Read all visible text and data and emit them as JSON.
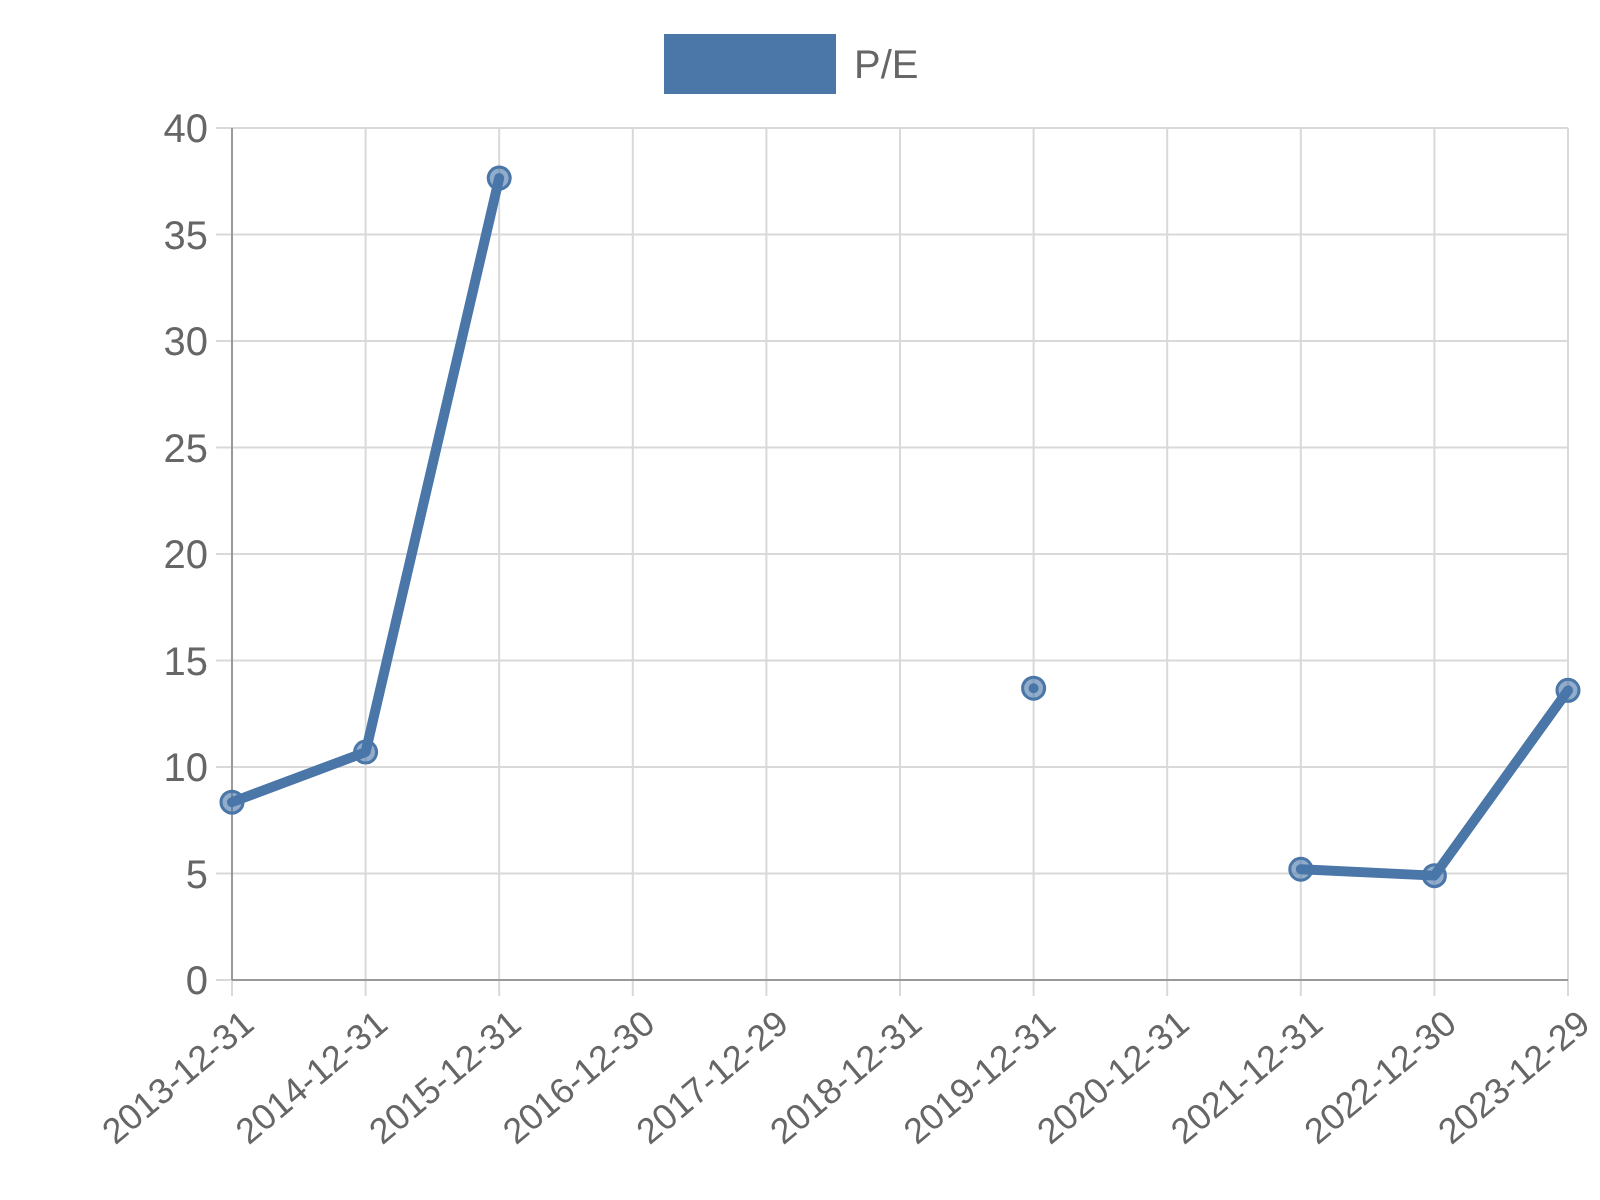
{
  "chart_data": {
    "type": "line",
    "categories": [
      "2013-12-31",
      "2014-12-31",
      "2015-12-31",
      "2016-12-30",
      "2017-12-29",
      "2018-12-31",
      "2019-12-31",
      "2020-12-31",
      "2021-12-31",
      "2022-12-30",
      "2023-12-29"
    ],
    "series": [
      {
        "name": "P/E",
        "color": "#4a76a8",
        "values": [
          8.35,
          10.7,
          37.65,
          null,
          null,
          null,
          13.7,
          null,
          5.2,
          4.9,
          13.6
        ]
      }
    ],
    "ylim": [
      0,
      40
    ],
    "yticks": [
      0,
      5,
      10,
      15,
      20,
      25,
      30,
      35,
      40
    ],
    "grid": true,
    "legend": "top",
    "marker": "circle",
    "line_style": "solid"
  }
}
